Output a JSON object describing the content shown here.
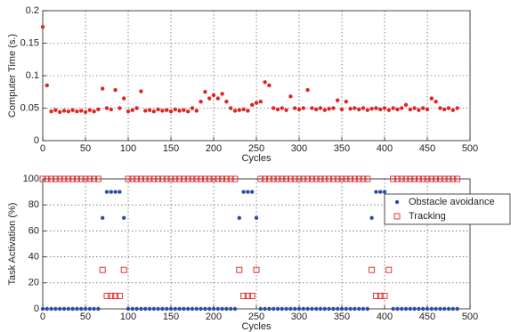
{
  "chart_data": [
    {
      "type": "scatter",
      "xlabel": "Cycles",
      "ylabel": "Computer Time (s.)",
      "color": "#e02424",
      "marker": "dot",
      "xlim": [
        0,
        500
      ],
      "xticks": [
        0,
        50,
        100,
        150,
        200,
        250,
        300,
        350,
        400,
        450,
        500
      ],
      "ylim": [
        0,
        0.2
      ],
      "yticks": [
        0,
        0.05,
        0.1,
        0.15,
        0.2
      ],
      "grid": true,
      "x": [
        0,
        5,
        10,
        15,
        20,
        25,
        30,
        35,
        40,
        45,
        50,
        55,
        60,
        65,
        70,
        75,
        80,
        85,
        90,
        95,
        100,
        105,
        110,
        115,
        120,
        125,
        130,
        135,
        140,
        145,
        150,
        155,
        160,
        165,
        170,
        175,
        180,
        185,
        190,
        195,
        200,
        205,
        210,
        215,
        220,
        225,
        230,
        235,
        240,
        245,
        250,
        255,
        260,
        265,
        270,
        275,
        280,
        285,
        290,
        295,
        300,
        305,
        310,
        315,
        320,
        325,
        330,
        335,
        340,
        345,
        350,
        355,
        360,
        365,
        370,
        375,
        380,
        385,
        390,
        395,
        400,
        405,
        410,
        415,
        420,
        425,
        430,
        435,
        440,
        445,
        450,
        455,
        460,
        465,
        470,
        475,
        480,
        485
      ],
      "values": [
        0.175,
        0.085,
        0.045,
        0.047,
        0.044,
        0.046,
        0.045,
        0.047,
        0.045,
        0.046,
        0.044,
        0.047,
        0.045,
        0.048,
        0.08,
        0.05,
        0.048,
        0.078,
        0.05,
        0.065,
        0.045,
        0.047,
        0.05,
        0.076,
        0.046,
        0.047,
        0.045,
        0.048,
        0.046,
        0.047,
        0.045,
        0.048,
        0.046,
        0.047,
        0.045,
        0.05,
        0.046,
        0.06,
        0.075,
        0.065,
        0.07,
        0.065,
        0.072,
        0.06,
        0.05,
        0.046,
        0.047,
        0.048,
        0.046,
        0.055,
        0.058,
        0.06,
        0.09,
        0.085,
        0.05,
        0.048,
        0.05,
        0.047,
        0.068,
        0.05,
        0.048,
        0.05,
        0.078,
        0.05,
        0.048,
        0.05,
        0.047,
        0.049,
        0.05,
        0.062,
        0.048,
        0.06,
        0.049,
        0.05,
        0.048,
        0.05,
        0.047,
        0.049,
        0.05,
        0.048,
        0.05,
        0.047,
        0.05,
        0.048,
        0.05,
        0.055,
        0.048,
        0.05,
        0.047,
        0.05,
        0.048,
        0.065,
        0.06,
        0.05,
        0.048,
        0.05,
        0.047,
        0.05
      ]
    },
    {
      "type": "scatter",
      "xlabel": "Cycles",
      "ylabel": "Task Activation (%)",
      "xlim": [
        0,
        500
      ],
      "xticks": [
        0,
        50,
        100,
        150,
        200,
        250,
        300,
        350,
        400,
        450,
        500
      ],
      "ylim": [
        0,
        100
      ],
      "yticks": [
        0,
        20,
        40,
        60,
        80,
        100
      ],
      "grid": true,
      "x": [
        0,
        5,
        10,
        15,
        20,
        25,
        30,
        35,
        40,
        45,
        50,
        55,
        60,
        65,
        70,
        75,
        80,
        85,
        90,
        95,
        100,
        105,
        110,
        115,
        120,
        125,
        130,
        135,
        140,
        145,
        150,
        155,
        160,
        165,
        170,
        175,
        180,
        185,
        190,
        195,
        200,
        205,
        210,
        215,
        220,
        225,
        230,
        235,
        240,
        245,
        250,
        255,
        260,
        265,
        270,
        275,
        280,
        285,
        290,
        295,
        300,
        305,
        310,
        315,
        320,
        325,
        330,
        335,
        340,
        345,
        350,
        355,
        360,
        365,
        370,
        375,
        380,
        385,
        390,
        395,
        400,
        405,
        410,
        415,
        420,
        425,
        430,
        435,
        440,
        445,
        450,
        455,
        460,
        465,
        470,
        475,
        480,
        485
      ],
      "series": [
        {
          "name": "Obstacle avoidance",
          "color": "#2b4fa8",
          "marker": "dot",
          "values": [
            0,
            0,
            0,
            0,
            0,
            0,
            0,
            0,
            0,
            0,
            0,
            0,
            0,
            0,
            70,
            90,
            90,
            90,
            90,
            70,
            0,
            0,
            0,
            0,
            0,
            0,
            0,
            0,
            0,
            0,
            0,
            0,
            0,
            0,
            0,
            0,
            0,
            0,
            0,
            0,
            0,
            0,
            0,
            0,
            0,
            0,
            70,
            90,
            90,
            90,
            70,
            0,
            0,
            0,
            0,
            0,
            0,
            0,
            0,
            0,
            0,
            0,
            0,
            0,
            0,
            0,
            0,
            0,
            0,
            0,
            0,
            0,
            0,
            0,
            0,
            0,
            0,
            70,
            90,
            90,
            90,
            70,
            0,
            0,
            0,
            0,
            0,
            0,
            0,
            0,
            0,
            0,
            0,
            0,
            0,
            0,
            0,
            0
          ]
        },
        {
          "name": "Tracking",
          "color": "#e02424",
          "marker": "square",
          "values": [
            100,
            100,
            100,
            100,
            100,
            100,
            100,
            100,
            100,
            100,
            100,
            100,
            100,
            100,
            30,
            10,
            10,
            10,
            10,
            30,
            100,
            100,
            100,
            100,
            100,
            100,
            100,
            100,
            100,
            100,
            100,
            100,
            100,
            100,
            100,
            100,
            100,
            100,
            100,
            100,
            100,
            100,
            100,
            100,
            100,
            100,
            30,
            10,
            10,
            10,
            30,
            100,
            100,
            100,
            100,
            100,
            100,
            100,
            100,
            100,
            100,
            100,
            100,
            100,
            100,
            100,
            100,
            100,
            100,
            100,
            100,
            100,
            100,
            100,
            100,
            100,
            100,
            30,
            10,
            10,
            10,
            30,
            100,
            100,
            100,
            100,
            100,
            100,
            100,
            100,
            100,
            100,
            100,
            100,
            100,
            100,
            100,
            100
          ]
        }
      ]
    }
  ]
}
